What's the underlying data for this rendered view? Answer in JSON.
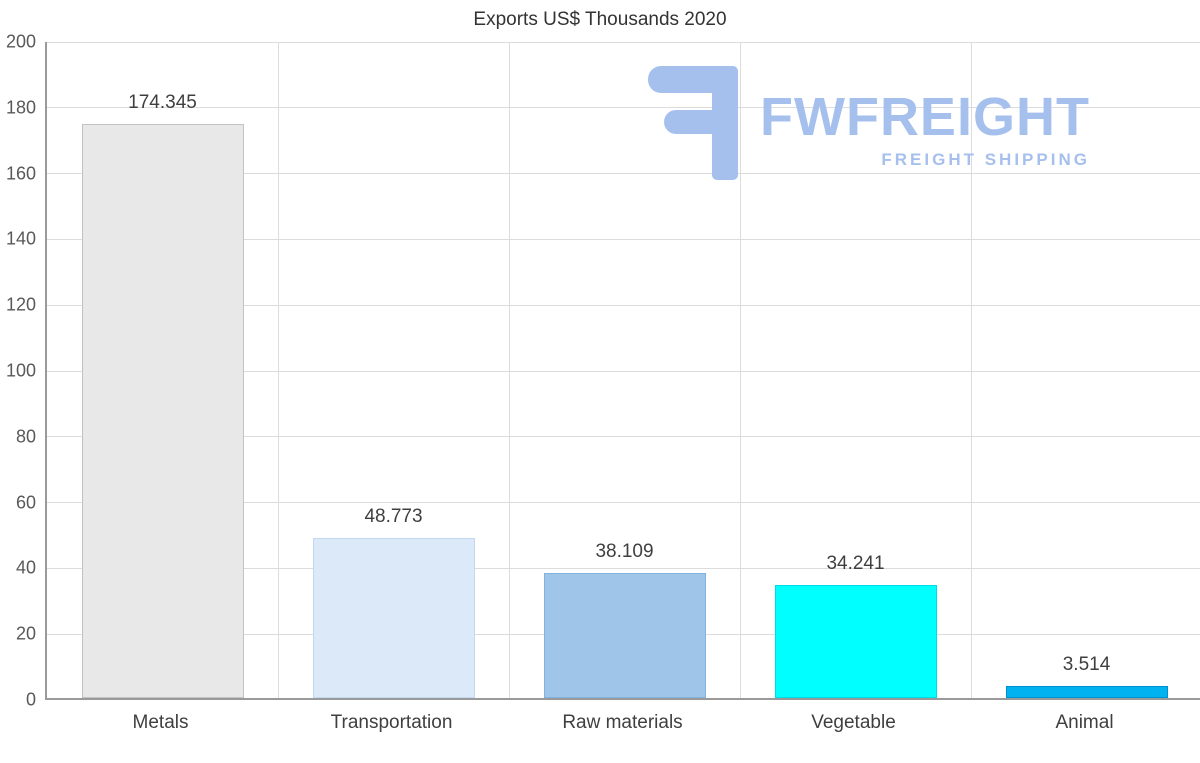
{
  "chart_data": {
    "type": "bar",
    "title": "Exports US$ Thousands 2020",
    "categories": [
      "Metals",
      "Transportation",
      "Raw materials",
      "Vegetable",
      "Animal"
    ],
    "values": [
      174.345,
      48.773,
      38.109,
      34.241,
      3.514
    ],
    "value_labels": [
      "174.345",
      "48.773",
      "38.109",
      "34.241",
      "3.514"
    ],
    "bar_colors": [
      "#e8e8e8",
      "#dce9f9",
      "#9fc5e8",
      "#00ffff",
      "#00b2f0"
    ],
    "bar_border_colors": [
      "#c2c2c2",
      "#c2d8f0",
      "#82b2de",
      "#00dbe8",
      "#0092cf"
    ],
    "xlabel": "",
    "ylabel": "",
    "ylim": [
      0,
      200
    ],
    "ytick_step": 20,
    "grid": true,
    "legend": false
  },
  "watermark": {
    "brand": "FWFREIGHT",
    "tagline": "FREIGHT SHIPPING",
    "color": "#a6c0ee"
  }
}
